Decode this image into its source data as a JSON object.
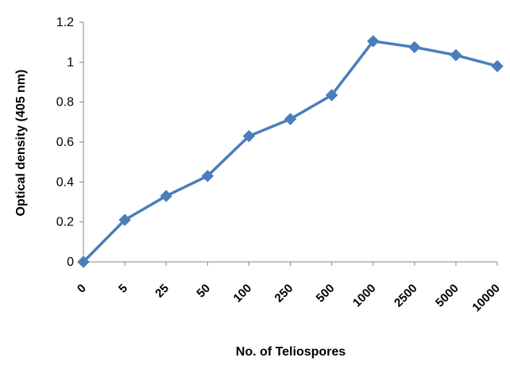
{
  "chart_data": {
    "type": "line",
    "title": "",
    "xlabel": "No. of Teliospores",
    "ylabel": "Optical density (405 nm)",
    "categories": [
      "0",
      "5",
      "25",
      "50",
      "100",
      "250",
      "500",
      "1000",
      "2500",
      "5000",
      "10000"
    ],
    "series": [
      {
        "values": [
          0,
          0.21,
          0.33,
          0.43,
          0.63,
          0.715,
          0.835,
          1.105,
          1.075,
          1.035,
          0.98
        ],
        "color": "#4a7ebb",
        "marker": "diamond"
      }
    ],
    "ylim": [
      0,
      1.2
    ],
    "yticks": [
      "0",
      "0.2",
      "0.4",
      "0.6",
      "0.8",
      "1",
      "1.2"
    ],
    "grid": false,
    "legend": "none"
  }
}
